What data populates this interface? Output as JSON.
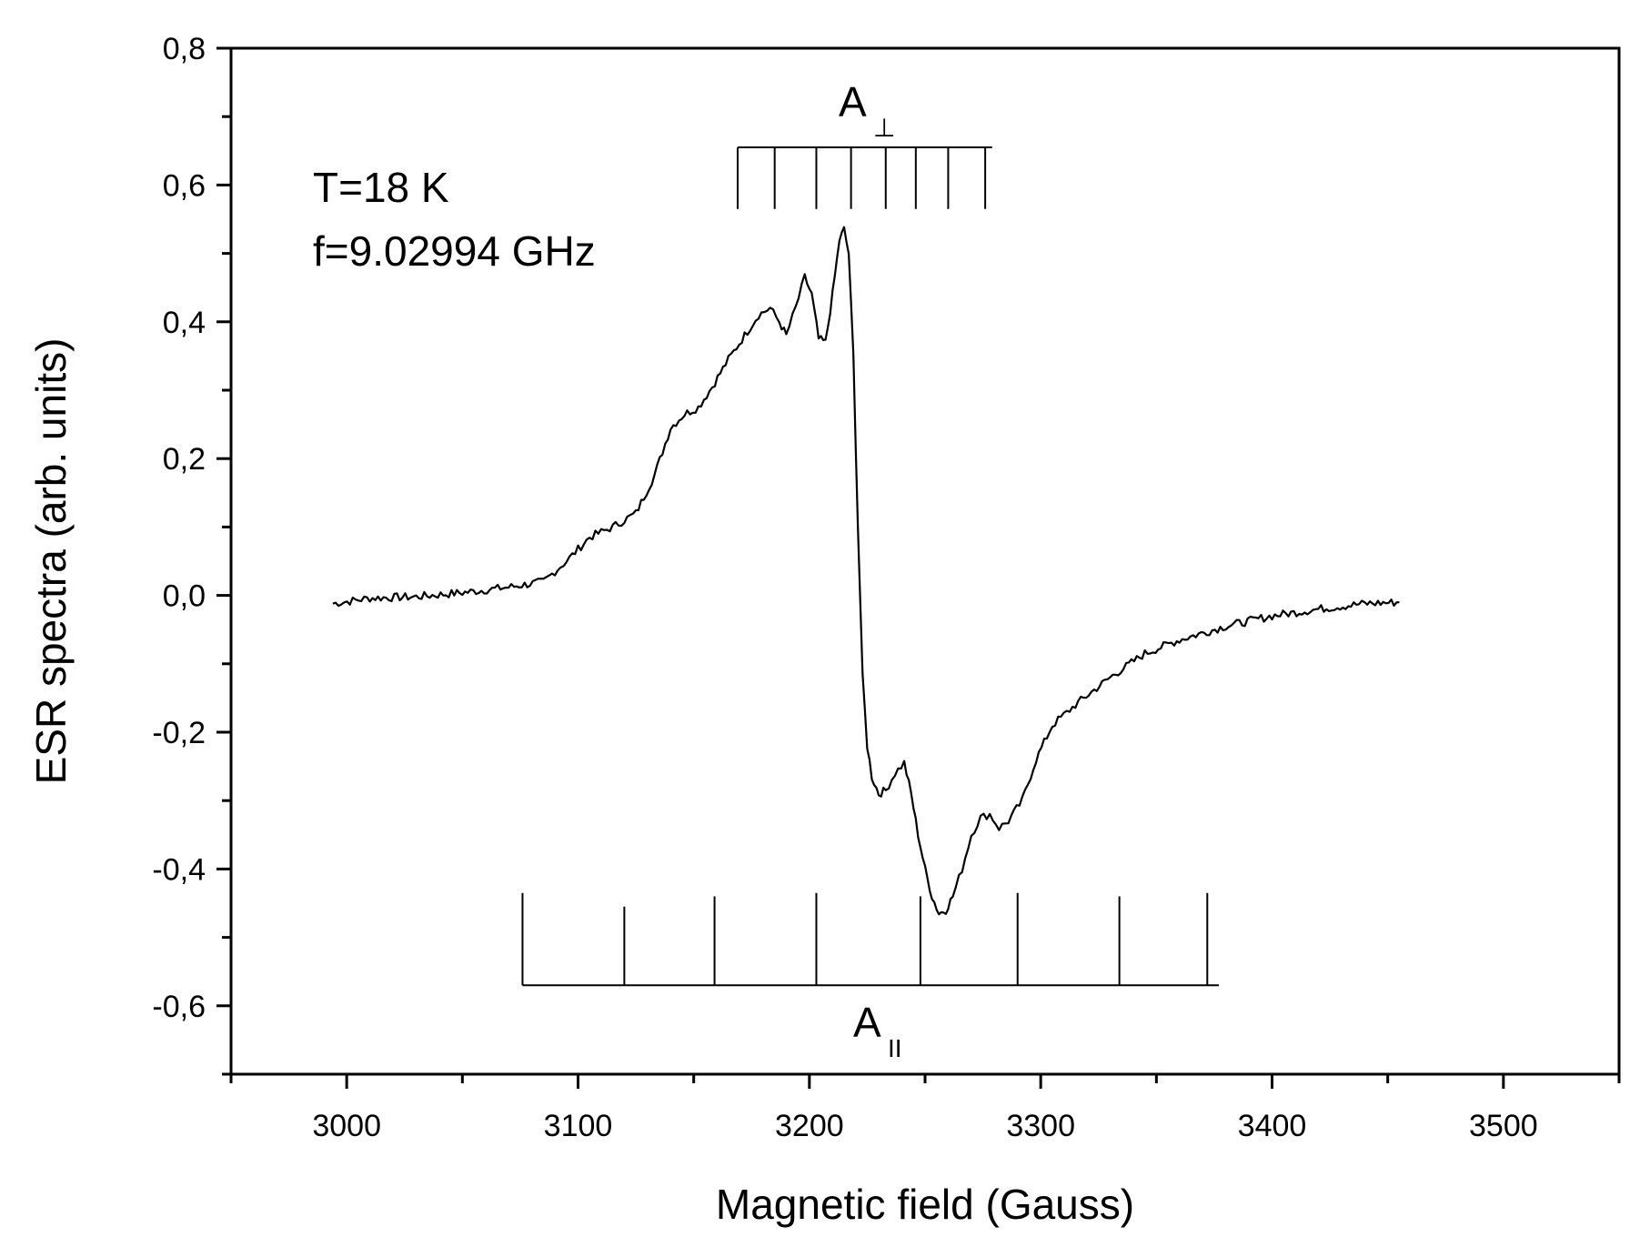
{
  "chart_data": {
    "type": "line",
    "title": "",
    "xlabel": "Magnetic field (Gauss)",
    "ylabel": "ESR spectra (arb. units)",
    "xlim": [
      2950,
      3550
    ],
    "ylim": [
      -0.7,
      0.8
    ],
    "x_ticks": [
      3000,
      3100,
      3200,
      3300,
      3400,
      3500
    ],
    "x_tick_labels": [
      "3000",
      "3100",
      "3200",
      "3300",
      "3400",
      "3500"
    ],
    "y_ticks": [
      -0.6,
      -0.4,
      -0.2,
      0.0,
      0.2,
      0.4,
      0.6,
      0.8
    ],
    "y_tick_labels": [
      "-0,6",
      "-0,4",
      "-0,2",
      "0,0",
      "0,2",
      "0,4",
      "0,6",
      "0,8"
    ],
    "grid": false,
    "series": [
      {
        "color": "#000000",
        "x": [
          2994,
          3010,
          3030,
          3050,
          3070,
          3085,
          3095,
          3105,
          3115,
          3125,
          3133,
          3140,
          3146,
          3152,
          3158,
          3165,
          3172,
          3178,
          3183,
          3187,
          3190,
          3194,
          3198,
          3201,
          3204,
          3207,
          3210,
          3213,
          3215,
          3217,
          3219,
          3221,
          3223,
          3225,
          3227,
          3230,
          3233,
          3237,
          3241,
          3244,
          3247,
          3250,
          3253,
          3256,
          3259,
          3262,
          3266,
          3270,
          3274,
          3278,
          3282,
          3286,
          3292,
          3298,
          3305,
          3315,
          3330,
          3345,
          3360,
          3380,
          3400,
          3420,
          3440,
          3455
        ],
        "y": [
          -0.012,
          -0.004,
          -0.002,
          0.004,
          0.012,
          0.02,
          0.05,
          0.085,
          0.1,
          0.12,
          0.175,
          0.245,
          0.265,
          0.275,
          0.305,
          0.345,
          0.38,
          0.41,
          0.42,
          0.4,
          0.38,
          0.42,
          0.465,
          0.44,
          0.375,
          0.37,
          0.44,
          0.52,
          0.535,
          0.5,
          0.35,
          0.1,
          -0.12,
          -0.22,
          -0.265,
          -0.29,
          -0.285,
          -0.26,
          -0.245,
          -0.29,
          -0.35,
          -0.4,
          -0.44,
          -0.465,
          -0.46,
          -0.44,
          -0.4,
          -0.35,
          -0.325,
          -0.32,
          -0.34,
          -0.33,
          -0.3,
          -0.24,
          -0.19,
          -0.16,
          -0.12,
          -0.085,
          -0.065,
          -0.045,
          -0.03,
          -0.02,
          -0.012,
          -0.01
        ]
      }
    ],
    "annotations": {
      "temperature": "T=18 K",
      "frequency": "f=9.02994 GHz",
      "a_perp_main": "A",
      "a_perp_sub": "⊥",
      "a_par_main": "A",
      "a_par_sub": "II"
    },
    "stick_perp": {
      "x": [
        3169,
        3185,
        3203,
        3218,
        3233,
        3246,
        3260,
        3276
      ],
      "baseline_y": 0.655,
      "top_y": 0.565,
      "span": [
        3169,
        3279
      ]
    },
    "stick_par": {
      "x": [
        3076,
        3120,
        3159,
        3203,
        3248,
        3290,
        3334,
        3372
      ],
      "baseline_y": -0.57,
      "heights": [
        0.135,
        0.115,
        0.13,
        0.135,
        0.13,
        0.135,
        0.13,
        0.135
      ],
      "span": [
        3076,
        3377
      ]
    }
  }
}
